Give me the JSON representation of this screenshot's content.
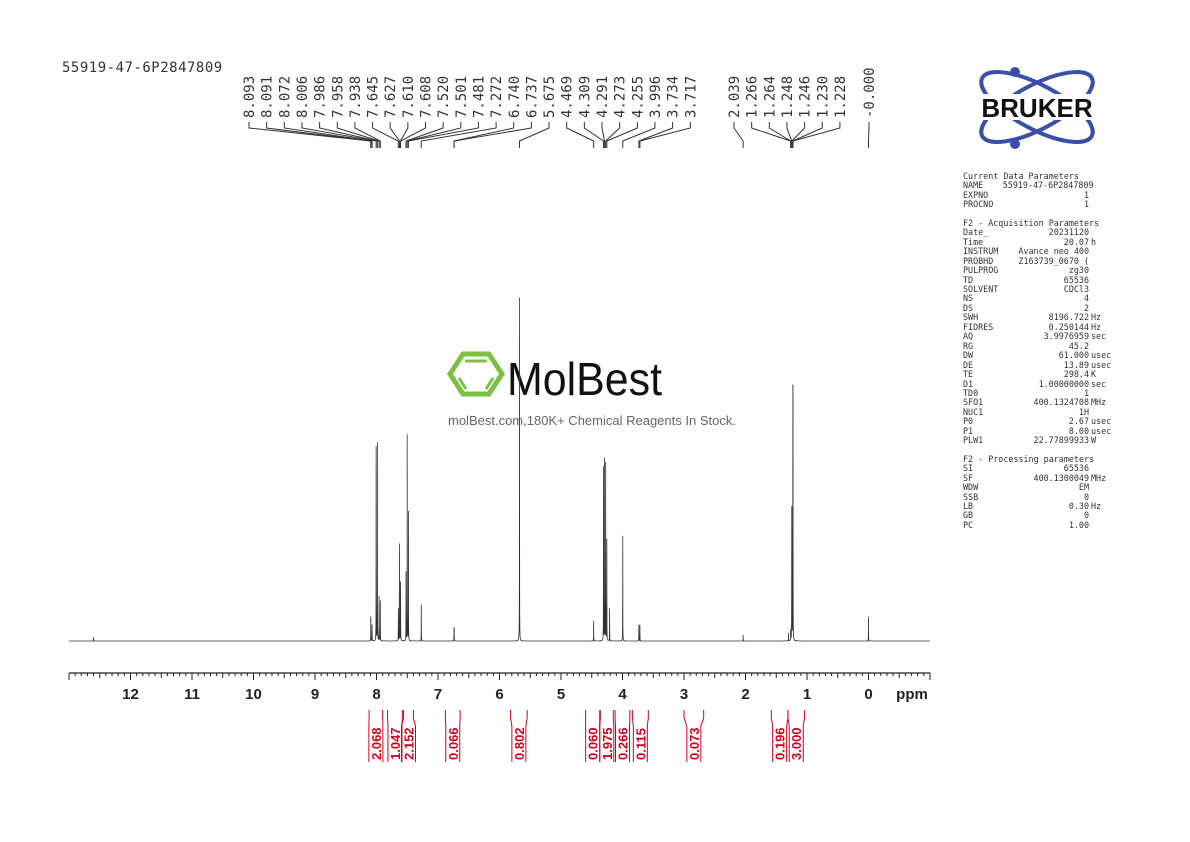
{
  "header": {
    "sample_name": "55919-47-6P2847809"
  },
  "parameters": {
    "sections": [
      {
        "title": "Current Data Parameters",
        "rows": [
          {
            "key": "NAME",
            "value": "55919-47-6P2847809",
            "unit": ""
          },
          {
            "key": "EXPNO",
            "value": "1",
            "unit": ""
          },
          {
            "key": "PROCNO",
            "value": "1",
            "unit": ""
          }
        ]
      },
      {
        "title": "F2 - Acquisition Parameters",
        "rows": [
          {
            "key": "Date_",
            "value": "20231120",
            "unit": ""
          },
          {
            "key": "Time",
            "value": "20.07",
            "unit": "h"
          },
          {
            "key": "INSTRUM",
            "value": "Avance neo 400",
            "unit": ""
          },
          {
            "key": "PROBHD",
            "value": "Z163739_0670 (",
            "unit": ""
          },
          {
            "key": "PULPROG",
            "value": "zg30",
            "unit": ""
          },
          {
            "key": "TD",
            "value": "65536",
            "unit": ""
          },
          {
            "key": "SOLVENT",
            "value": "CDCl3",
            "unit": ""
          },
          {
            "key": "NS",
            "value": "4",
            "unit": ""
          },
          {
            "key": "DS",
            "value": "2",
            "unit": ""
          },
          {
            "key": "SWH",
            "value": "8196.722",
            "unit": "Hz"
          },
          {
            "key": "FIDRES",
            "value": "0.250144",
            "unit": "Hz"
          },
          {
            "key": "AQ",
            "value": "3.9976959",
            "unit": "sec"
          },
          {
            "key": "RG",
            "value": "45.2",
            "unit": ""
          },
          {
            "key": "DW",
            "value": "61.000",
            "unit": "usec"
          },
          {
            "key": "DE",
            "value": "13.89",
            "unit": "usec"
          },
          {
            "key": "TE",
            "value": "298.4",
            "unit": "K"
          },
          {
            "key": "D1",
            "value": "1.00000000",
            "unit": "sec"
          },
          {
            "key": "TD0",
            "value": "1",
            "unit": ""
          },
          {
            "key": "SFO1",
            "value": "400.1324708",
            "unit": "MHz"
          },
          {
            "key": "NUC1",
            "value": "1H",
            "unit": ""
          },
          {
            "key": "P0",
            "value": "2.67",
            "unit": "usec"
          },
          {
            "key": "P1",
            "value": "8.00",
            "unit": "usec"
          },
          {
            "key": "PLW1",
            "value": "22.77899933",
            "unit": "W"
          }
        ]
      },
      {
        "title": "F2 - Processing parameters",
        "rows": [
          {
            "key": "SI",
            "value": "65536",
            "unit": ""
          },
          {
            "key": "SF",
            "value": "400.1300049",
            "unit": "MHz"
          },
          {
            "key": "WDW",
            "value": "EM",
            "unit": ""
          },
          {
            "key": "SSB",
            "value": "0",
            "unit": ""
          },
          {
            "key": "LB",
            "value": "0.30",
            "unit": "Hz"
          },
          {
            "key": "GB",
            "value": "0",
            "unit": ""
          },
          {
            "key": "PC",
            "value": "1.00",
            "unit": ""
          }
        ]
      }
    ]
  },
  "logos": {
    "bruker": "BRUKER",
    "molbest": "MolBest",
    "molbest_tagline": "molBest.com,180K+ Chemical Reagents In Stock.",
    "bruker_color": "#3a4fa8",
    "molbest_color": "#7dc142"
  },
  "chart_data": {
    "type": "line",
    "title": "",
    "xlabel": "ppm",
    "ylabel": "",
    "xlim": [
      13.0,
      -1.0
    ],
    "x_reversed": true,
    "grid": false,
    "xticks": [
      "12",
      "11",
      "10",
      "9",
      "8",
      "7",
      "6",
      "5",
      "4",
      "3",
      "2",
      "1",
      "0"
    ],
    "line_color": "#333333",
    "integral_color": "#d0021b",
    "peak_labels": [
      "8.093",
      "8.091",
      "8.072",
      "8.006",
      "7.986",
      "7.958",
      "7.938",
      "7.645",
      "7.627",
      "7.610",
      "7.608",
      "7.520",
      "7.501",
      "7.481",
      "7.272",
      "6.740",
      "6.737",
      "5.675",
      "4.469",
      "4.309",
      "4.291",
      "4.273",
      "4.255",
      "3.996",
      "3.734",
      "3.717",
      "2.039",
      "1.266",
      "1.264",
      "1.248",
      "1.246",
      "1.230",
      "1.228",
      "-0.000"
    ],
    "peaks": [
      {
        "ppm": 12.6,
        "intensity": 0.01
      },
      {
        "ppm": 8.093,
        "intensity": 0.05
      },
      {
        "ppm": 8.091,
        "intensity": 0.04
      },
      {
        "ppm": 8.072,
        "intensity": 0.04
      },
      {
        "ppm": 8.006,
        "intensity": 0.48
      },
      {
        "ppm": 7.986,
        "intensity": 0.49
      },
      {
        "ppm": 7.958,
        "intensity": 0.11
      },
      {
        "ppm": 7.938,
        "intensity": 0.1
      },
      {
        "ppm": 7.645,
        "intensity": 0.08
      },
      {
        "ppm": 7.627,
        "intensity": 0.24
      },
      {
        "ppm": 7.61,
        "intensity": 0.12
      },
      {
        "ppm": 7.608,
        "intensity": 0.1
      },
      {
        "ppm": 7.52,
        "intensity": 0.17
      },
      {
        "ppm": 7.501,
        "intensity": 0.51
      },
      {
        "ppm": 7.481,
        "intensity": 0.32
      },
      {
        "ppm": 7.272,
        "intensity": 0.09
      },
      {
        "ppm": 6.74,
        "intensity": 0.03
      },
      {
        "ppm": 6.737,
        "intensity": 0.03
      },
      {
        "ppm": 5.675,
        "intensity": 0.85
      },
      {
        "ppm": 4.469,
        "intensity": 0.05
      },
      {
        "ppm": 4.309,
        "intensity": 0.43
      },
      {
        "ppm": 4.291,
        "intensity": 0.45
      },
      {
        "ppm": 4.273,
        "intensity": 0.44
      },
      {
        "ppm": 4.255,
        "intensity": 0.25
      },
      {
        "ppm": 4.21,
        "intensity": 0.08
      },
      {
        "ppm": 3.996,
        "intensity": 0.26
      },
      {
        "ppm": 3.734,
        "intensity": 0.04
      },
      {
        "ppm": 3.717,
        "intensity": 0.04
      },
      {
        "ppm": 2.039,
        "intensity": 0.015
      },
      {
        "ppm": 1.3,
        "intensity": 0.02
      },
      {
        "ppm": 1.266,
        "intensity": 0.02
      },
      {
        "ppm": 1.264,
        "intensity": 0.02
      },
      {
        "ppm": 1.248,
        "intensity": 0.26
      },
      {
        "ppm": 1.246,
        "intensity": 0.26
      },
      {
        "ppm": 1.23,
        "intensity": 0.5
      },
      {
        "ppm": 1.228,
        "intensity": 0.5
      },
      {
        "ppm": 0.0,
        "intensity": 0.06
      }
    ],
    "integrals": [
      {
        "from": 8.12,
        "to": 7.9,
        "value": "2.068"
      },
      {
        "from": 7.82,
        "to": 7.58,
        "value": "1.047"
      },
      {
        "from": 7.56,
        "to": 7.4,
        "value": "2.152"
      },
      {
        "from": 6.88,
        "to": 6.64,
        "value": "0.066"
      },
      {
        "from": 5.82,
        "to": 5.55,
        "value": "0.802"
      },
      {
        "from": 4.6,
        "to": 4.37,
        "value": "0.060"
      },
      {
        "from": 4.36,
        "to": 4.15,
        "value": "1.975"
      },
      {
        "from": 4.12,
        "to": 3.88,
        "value": "0.266"
      },
      {
        "from": 3.84,
        "to": 3.58,
        "value": "0.115"
      },
      {
        "from": 3.0,
        "to": 2.68,
        "value": "0.073"
      },
      {
        "from": 1.58,
        "to": 1.31,
        "value": "0.196"
      },
      {
        "from": 1.31,
        "to": 1.04,
        "value": "3.000"
      }
    ]
  }
}
